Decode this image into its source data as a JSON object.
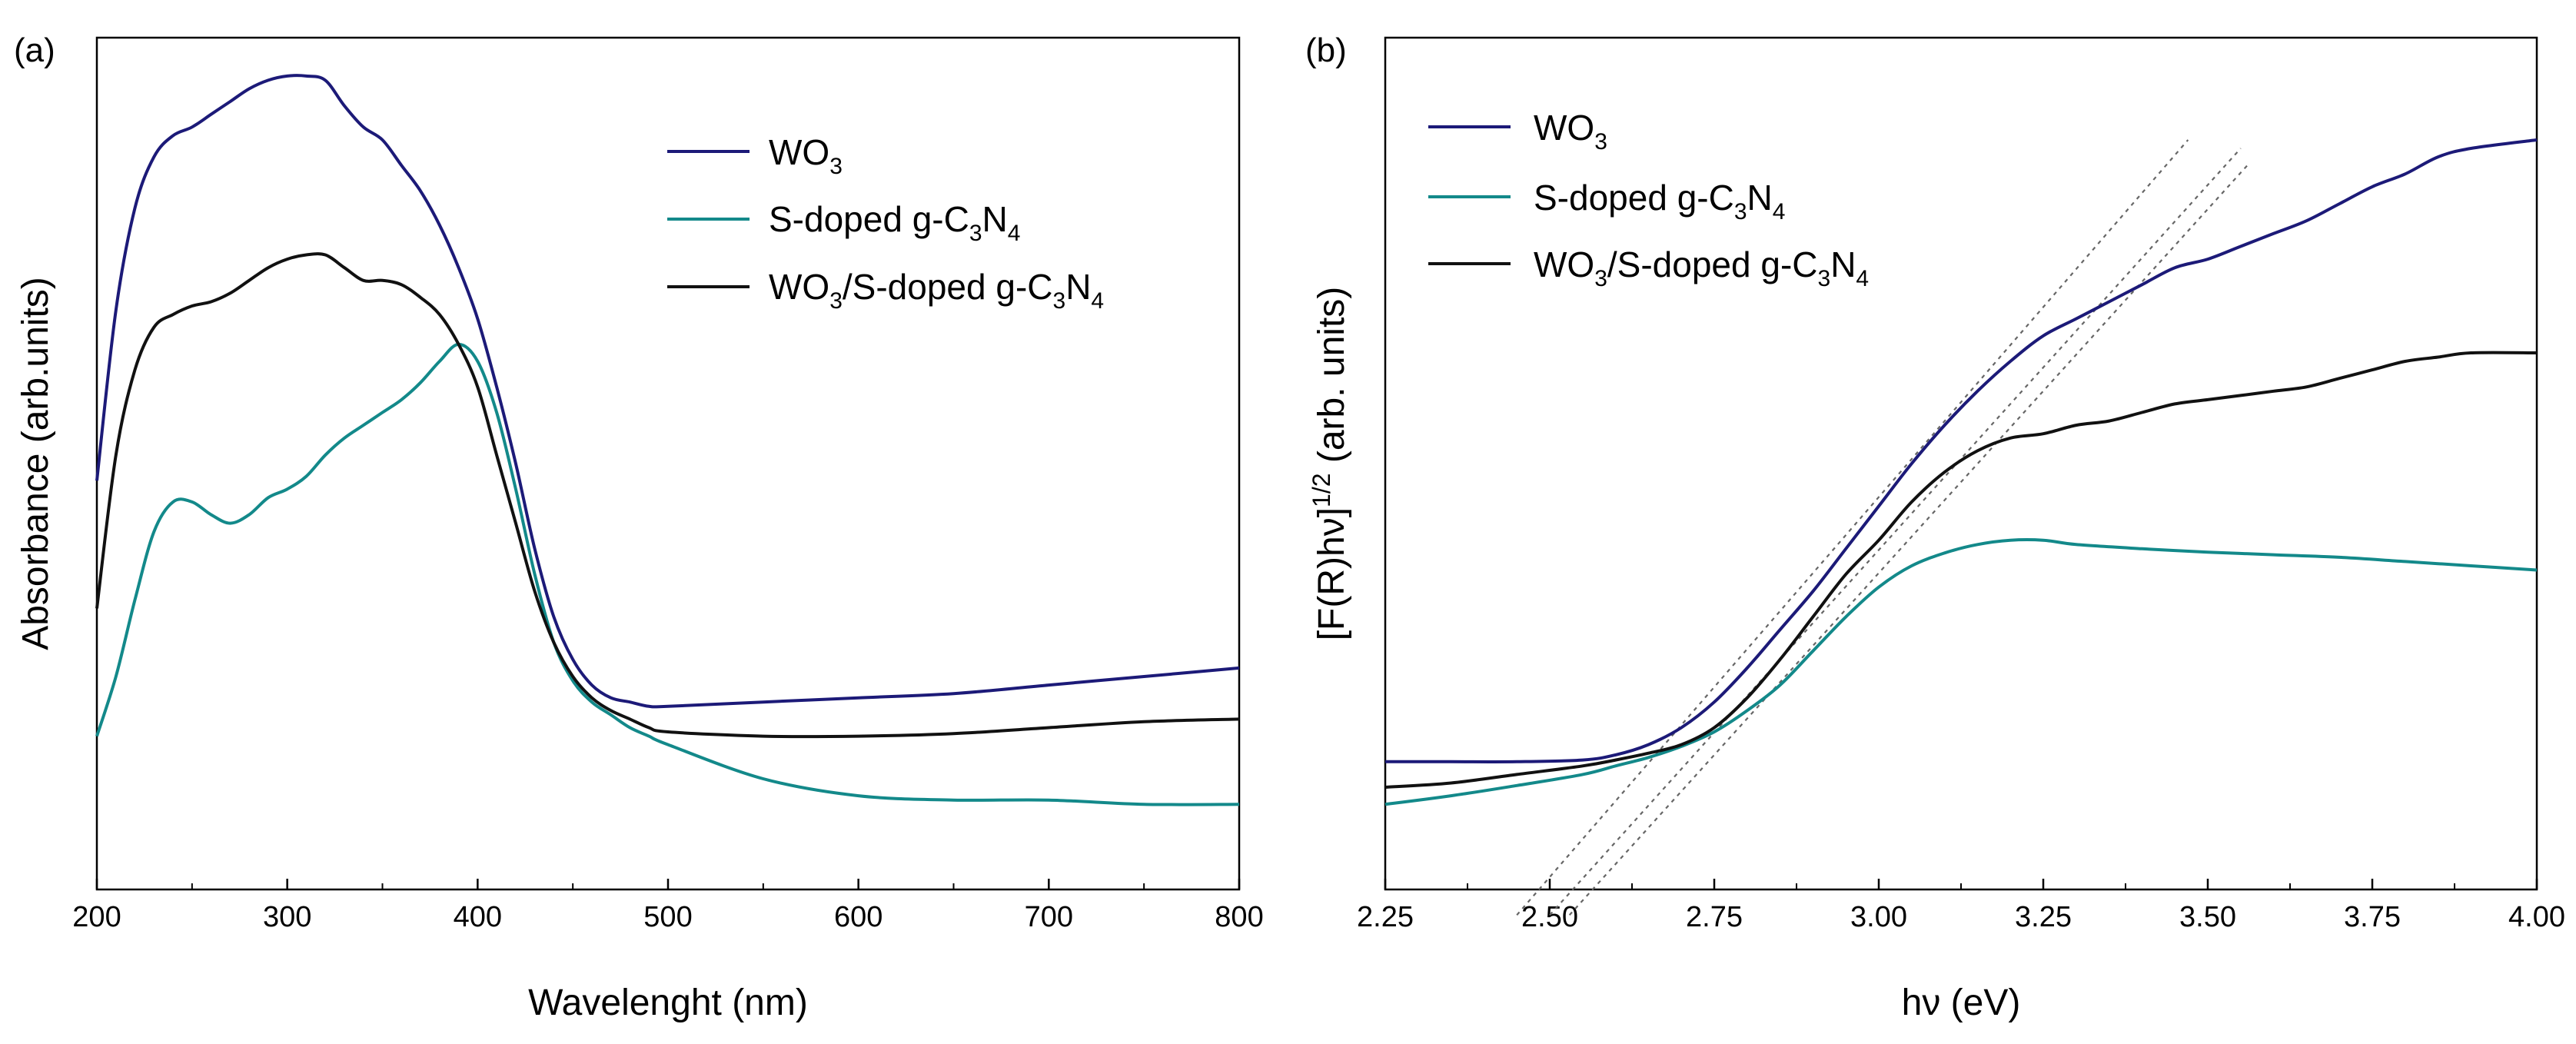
{
  "chart_data": [
    {
      "panel": "(a)",
      "type": "line",
      "xlabel": "Wavelenght (nm)",
      "ylabel": "Absorbance (arb.units)",
      "xlim": [
        200,
        800
      ],
      "ylim": [
        0,
        1
      ],
      "xticks": [
        "200",
        "300",
        "400",
        "500",
        "600",
        "700",
        "800"
      ],
      "y_tick_labels_shown": false,
      "legend_position": "top-right",
      "series": [
        {
          "name": "WO3",
          "color": "#1c1a78",
          "x": [
            200,
            210,
            220,
            230,
            240,
            250,
            260,
            270,
            280,
            290,
            300,
            310,
            320,
            330,
            340,
            350,
            360,
            370,
            380,
            390,
            400,
            410,
            420,
            430,
            440,
            450,
            460,
            470,
            480,
            490,
            500,
            550,
            600,
            650,
            700,
            750,
            800
          ],
          "y": [
            0.48,
            0.68,
            0.8,
            0.86,
            0.885,
            0.895,
            0.91,
            0.925,
            0.94,
            0.95,
            0.955,
            0.955,
            0.95,
            0.92,
            0.895,
            0.88,
            0.85,
            0.82,
            0.78,
            0.73,
            0.67,
            0.59,
            0.5,
            0.4,
            0.32,
            0.27,
            0.24,
            0.225,
            0.22,
            0.215,
            0.215,
            0.22,
            0.225,
            0.23,
            0.24,
            0.25,
            0.26
          ]
        },
        {
          "name": "S-doped g-C3N4",
          "color": "#13898a",
          "x": [
            200,
            210,
            220,
            230,
            240,
            250,
            260,
            270,
            280,
            290,
            300,
            310,
            320,
            330,
            340,
            350,
            360,
            370,
            380,
            390,
            400,
            410,
            420,
            430,
            440,
            450,
            460,
            470,
            480,
            490,
            500,
            550,
            600,
            650,
            700,
            750,
            800
          ],
          "y": [
            0.18,
            0.25,
            0.34,
            0.42,
            0.455,
            0.455,
            0.44,
            0.43,
            0.44,
            0.46,
            0.47,
            0.485,
            0.51,
            0.53,
            0.545,
            0.56,
            0.575,
            0.595,
            0.62,
            0.64,
            0.62,
            0.56,
            0.47,
            0.37,
            0.29,
            0.245,
            0.22,
            0.205,
            0.19,
            0.18,
            0.17,
            0.13,
            0.11,
            0.105,
            0.105,
            0.1,
            0.1
          ]
        },
        {
          "name": "WO3/S-doped g-C3N4",
          "color": "#111111",
          "x": [
            200,
            210,
            220,
            230,
            240,
            250,
            260,
            270,
            280,
            290,
            300,
            310,
            320,
            330,
            340,
            350,
            360,
            370,
            380,
            390,
            400,
            410,
            420,
            430,
            440,
            450,
            460,
            470,
            480,
            490,
            500,
            550,
            600,
            650,
            700,
            750,
            800
          ],
          "y": [
            0.33,
            0.51,
            0.61,
            0.66,
            0.675,
            0.685,
            0.69,
            0.7,
            0.715,
            0.73,
            0.74,
            0.745,
            0.745,
            0.73,
            0.715,
            0.715,
            0.71,
            0.695,
            0.675,
            0.64,
            0.59,
            0.51,
            0.43,
            0.35,
            0.29,
            0.25,
            0.225,
            0.21,
            0.2,
            0.19,
            0.185,
            0.18,
            0.18,
            0.183,
            0.19,
            0.197,
            0.2
          ]
        }
      ]
    },
    {
      "panel": "(b)",
      "type": "line",
      "xlabel": "hν (eV)",
      "ylabel_main": "[F(R)hν]",
      "ylabel_sup": "1/2",
      "ylabel_tail": " (arb. units)",
      "xlim": [
        2.25,
        4.0
      ],
      "ylim": [
        0,
        1
      ],
      "xticks": [
        "2.25",
        "2.50",
        "2.75",
        "3.00",
        "3.25",
        "3.50",
        "3.75",
        "4.00"
      ],
      "y_tick_labels_shown": false,
      "legend_position": "top-left",
      "series": [
        {
          "name": "WO3",
          "color": "#1c1a78",
          "x": [
            2.25,
            2.35,
            2.45,
            2.55,
            2.6,
            2.65,
            2.7,
            2.75,
            2.8,
            2.85,
            2.9,
            2.95,
            3.0,
            3.05,
            3.1,
            3.15,
            3.2,
            3.25,
            3.3,
            3.35,
            3.4,
            3.45,
            3.5,
            3.55,
            3.6,
            3.65,
            3.7,
            3.75,
            3.8,
            3.85,
            3.9,
            4.0
          ],
          "y": [
            0.15,
            0.15,
            0.15,
            0.152,
            0.158,
            0.17,
            0.19,
            0.22,
            0.26,
            0.305,
            0.35,
            0.4,
            0.45,
            0.5,
            0.545,
            0.585,
            0.62,
            0.65,
            0.67,
            0.69,
            0.71,
            0.73,
            0.74,
            0.755,
            0.77,
            0.785,
            0.805,
            0.825,
            0.84,
            0.86,
            0.87,
            0.88
          ]
        },
        {
          "name": "S-doped g-C3N4",
          "color": "#13898a",
          "x": [
            2.25,
            2.35,
            2.45,
            2.55,
            2.6,
            2.65,
            2.7,
            2.75,
            2.8,
            2.85,
            2.9,
            2.95,
            3.0,
            3.05,
            3.1,
            3.15,
            3.2,
            3.25,
            3.3,
            3.4,
            3.5,
            3.6,
            3.7,
            3.8,
            3.9,
            4.0
          ],
          "y": [
            0.1,
            0.11,
            0.122,
            0.135,
            0.145,
            0.155,
            0.168,
            0.185,
            0.21,
            0.24,
            0.28,
            0.32,
            0.355,
            0.38,
            0.395,
            0.405,
            0.41,
            0.41,
            0.405,
            0.4,
            0.396,
            0.393,
            0.39,
            0.385,
            0.38,
            0.375
          ]
        },
        {
          "name": "WO3/S-doped g-C3N4",
          "color": "#111111",
          "x": [
            2.25,
            2.35,
            2.45,
            2.55,
            2.6,
            2.65,
            2.7,
            2.75,
            2.8,
            2.85,
            2.9,
            2.95,
            3.0,
            3.05,
            3.1,
            3.15,
            3.2,
            3.25,
            3.3,
            3.35,
            3.4,
            3.45,
            3.5,
            3.55,
            3.6,
            3.65,
            3.7,
            3.75,
            3.8,
            3.85,
            3.9,
            4.0
          ],
          "y": [
            0.12,
            0.125,
            0.135,
            0.145,
            0.152,
            0.16,
            0.17,
            0.19,
            0.225,
            0.27,
            0.32,
            0.37,
            0.41,
            0.455,
            0.49,
            0.515,
            0.53,
            0.535,
            0.545,
            0.55,
            0.56,
            0.57,
            0.575,
            0.58,
            0.585,
            0.59,
            0.6,
            0.61,
            0.62,
            0.625,
            0.63,
            0.63
          ]
        }
      ],
      "tangent_lines": [
        {
          "x": [
            2.45,
            3.47
          ],
          "y": [
            -0.03,
            0.88
          ]
        },
        {
          "x": [
            2.5,
            3.55
          ],
          "y": [
            -0.03,
            0.87
          ]
        },
        {
          "x": [
            2.53,
            3.56
          ],
          "y": [
            -0.03,
            0.85
          ]
        }
      ]
    }
  ]
}
